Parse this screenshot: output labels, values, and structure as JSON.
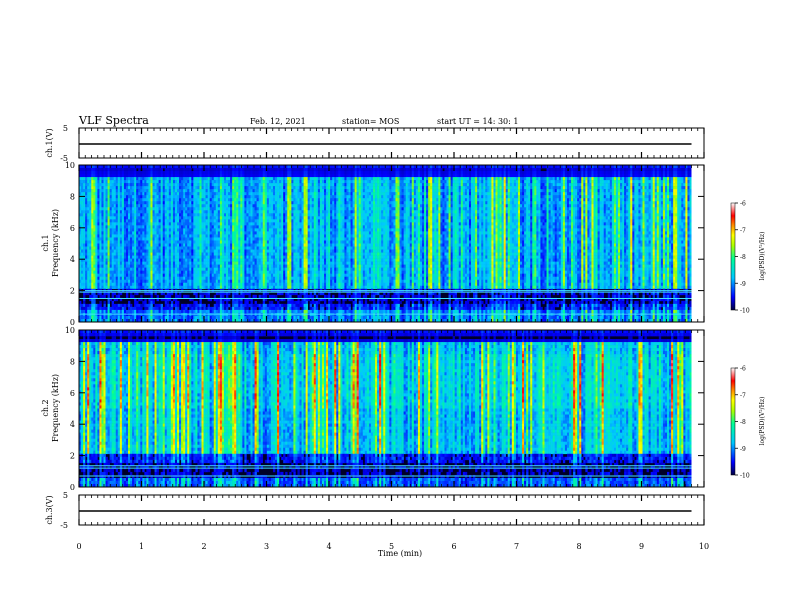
{
  "header": {
    "title": "VLF Spectra",
    "date": "Feb. 12, 2021",
    "station": "station= MOS",
    "start": "start  UT =   14: 30: 1"
  },
  "chart_data": [
    {
      "type": "line",
      "name": "ch1-waveform",
      "ylabel": "ch.1(V)",
      "ylim": [
        -5,
        5
      ],
      "yticks": [
        5,
        -5
      ],
      "xlim": [
        0,
        10
      ],
      "x": [
        0,
        9.8
      ],
      "y": [
        0,
        0
      ]
    },
    {
      "type": "heatmap",
      "name": "ch1-spectrogram",
      "ylabel_channel": "ch.1",
      "ylabel": "Frequency (kHz)",
      "ylim": [
        0,
        10
      ],
      "yticks": [
        0,
        2,
        4,
        6,
        8,
        10
      ],
      "xlim": [
        0,
        10
      ],
      "data_xmax": 9.8,
      "colorbar": {
        "label": "log(PSD)(V²/Hz)",
        "min": -10,
        "max": -6,
        "ticks": [
          -6,
          -7,
          -8,
          -9,
          -10
        ]
      },
      "bands_khz": [
        1.9,
        2.0,
        1.5,
        0.5
      ]
    },
    {
      "type": "heatmap",
      "name": "ch2-spectrogram",
      "ylabel_channel": "ch.2",
      "ylabel": "Frequency (kHz)",
      "ylim": [
        0,
        10
      ],
      "yticks": [
        0,
        2,
        4,
        6,
        8,
        10
      ],
      "xlim": [
        0,
        10
      ],
      "data_xmax": 9.8,
      "colorbar": {
        "label": "log(PSD)(V²/Hz)",
        "min": -10,
        "max": -6,
        "ticks": [
          -6,
          -7,
          -8,
          -9,
          -10
        ]
      },
      "bands_khz": [
        1.2,
        1.35,
        0.7
      ]
    },
    {
      "type": "line",
      "name": "ch3-waveform",
      "ylabel": "ch.3(V)",
      "ylim": [
        -5,
        5
      ],
      "yticks": [
        5,
        -5
      ],
      "xlim": [
        0,
        10
      ],
      "x": [
        0,
        9.8
      ],
      "y": [
        0,
        0
      ]
    }
  ],
  "xaxis": {
    "label": "Time (min)",
    "ticks": [
      0,
      1,
      2,
      3,
      4,
      5,
      6,
      7,
      8,
      9,
      10
    ]
  },
  "colors": {
    "cmap": [
      "#000080",
      "#0000ff",
      "#00c8ff",
      "#00ff96",
      "#aaff00",
      "#ffff00",
      "#ff8000",
      "#ff0000",
      "#ffffff"
    ]
  }
}
